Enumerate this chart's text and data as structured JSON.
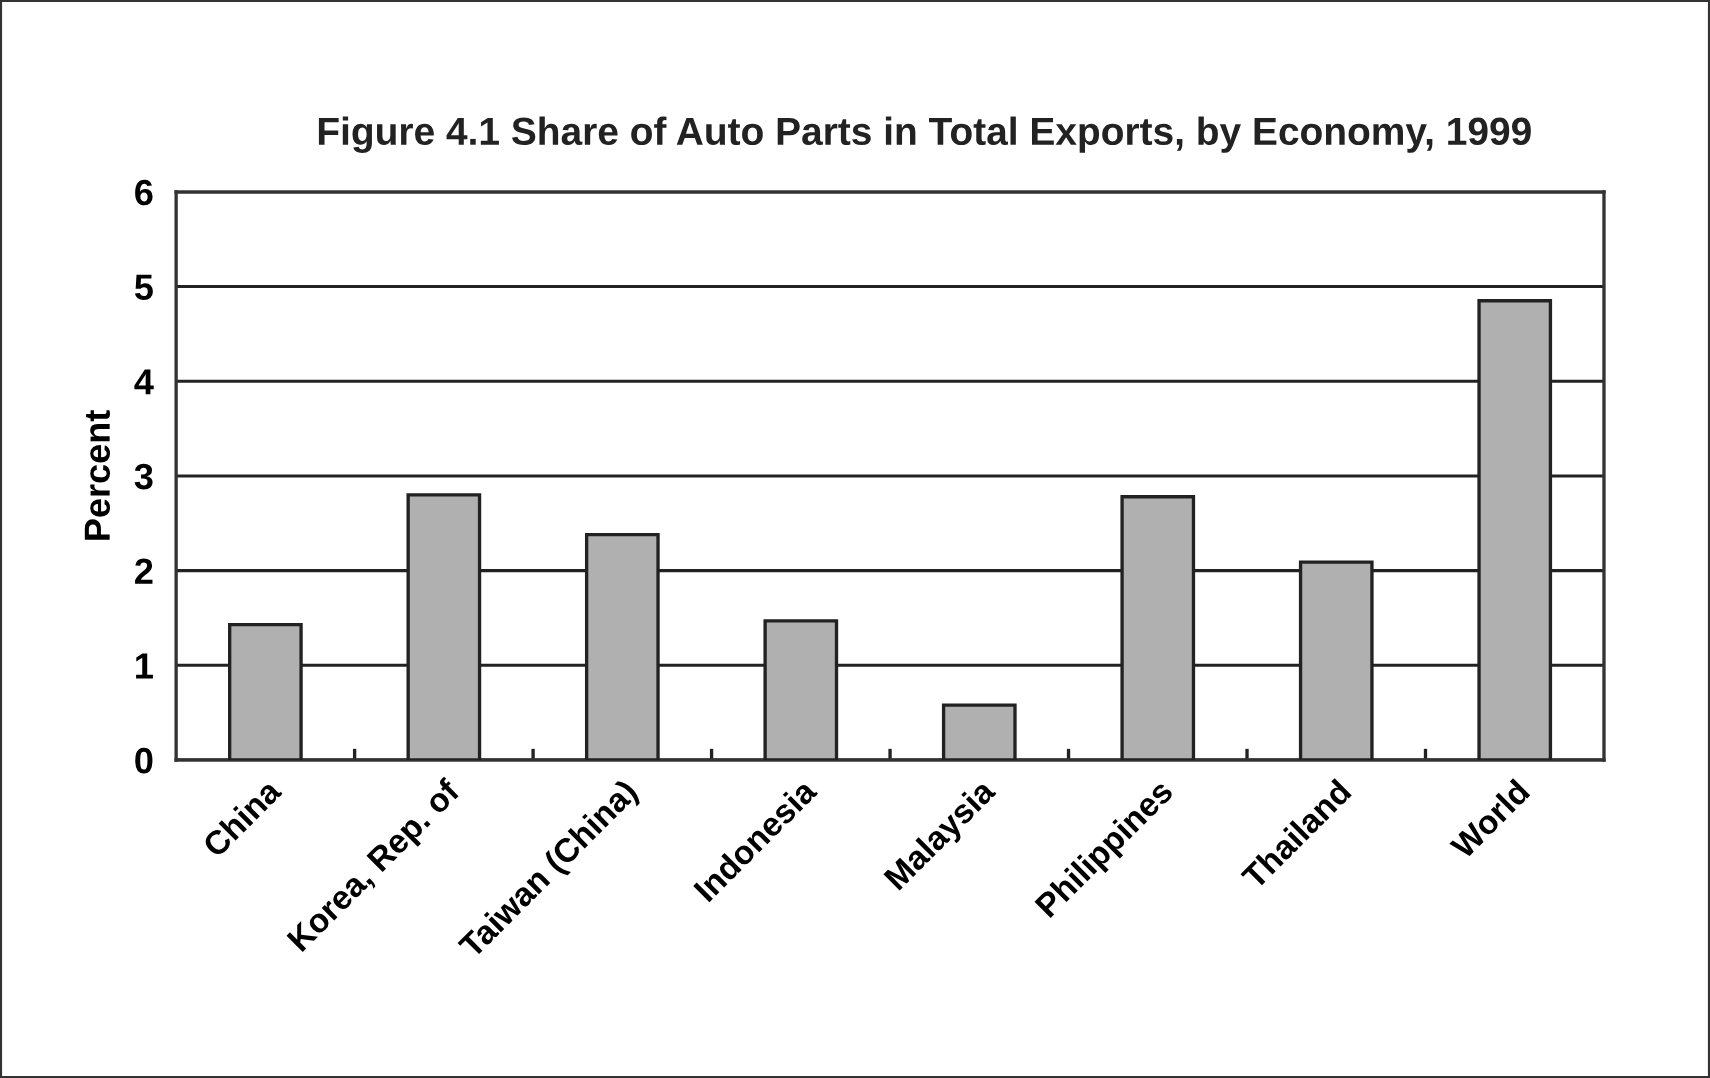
{
  "chart_data": {
    "type": "bar",
    "title": "Figure 4.1 Share of Auto Parts in Total Exports, by Economy, 1999",
    "ylabel": "Percent",
    "categories": [
      "China",
      "Korea, Rep. of",
      "Taiwan (China)",
      "Indonesia",
      "Malaysia",
      "Philippines",
      "Thailand",
      "World"
    ],
    "values": [
      1.43,
      2.8,
      2.38,
      1.47,
      0.58,
      2.78,
      2.09,
      4.85
    ],
    "color": "#b0b0b0",
    "ylim": [
      0,
      6
    ],
    "yticks": [
      0,
      1,
      2,
      3,
      4,
      5,
      6
    ],
    "grid": "y"
  }
}
